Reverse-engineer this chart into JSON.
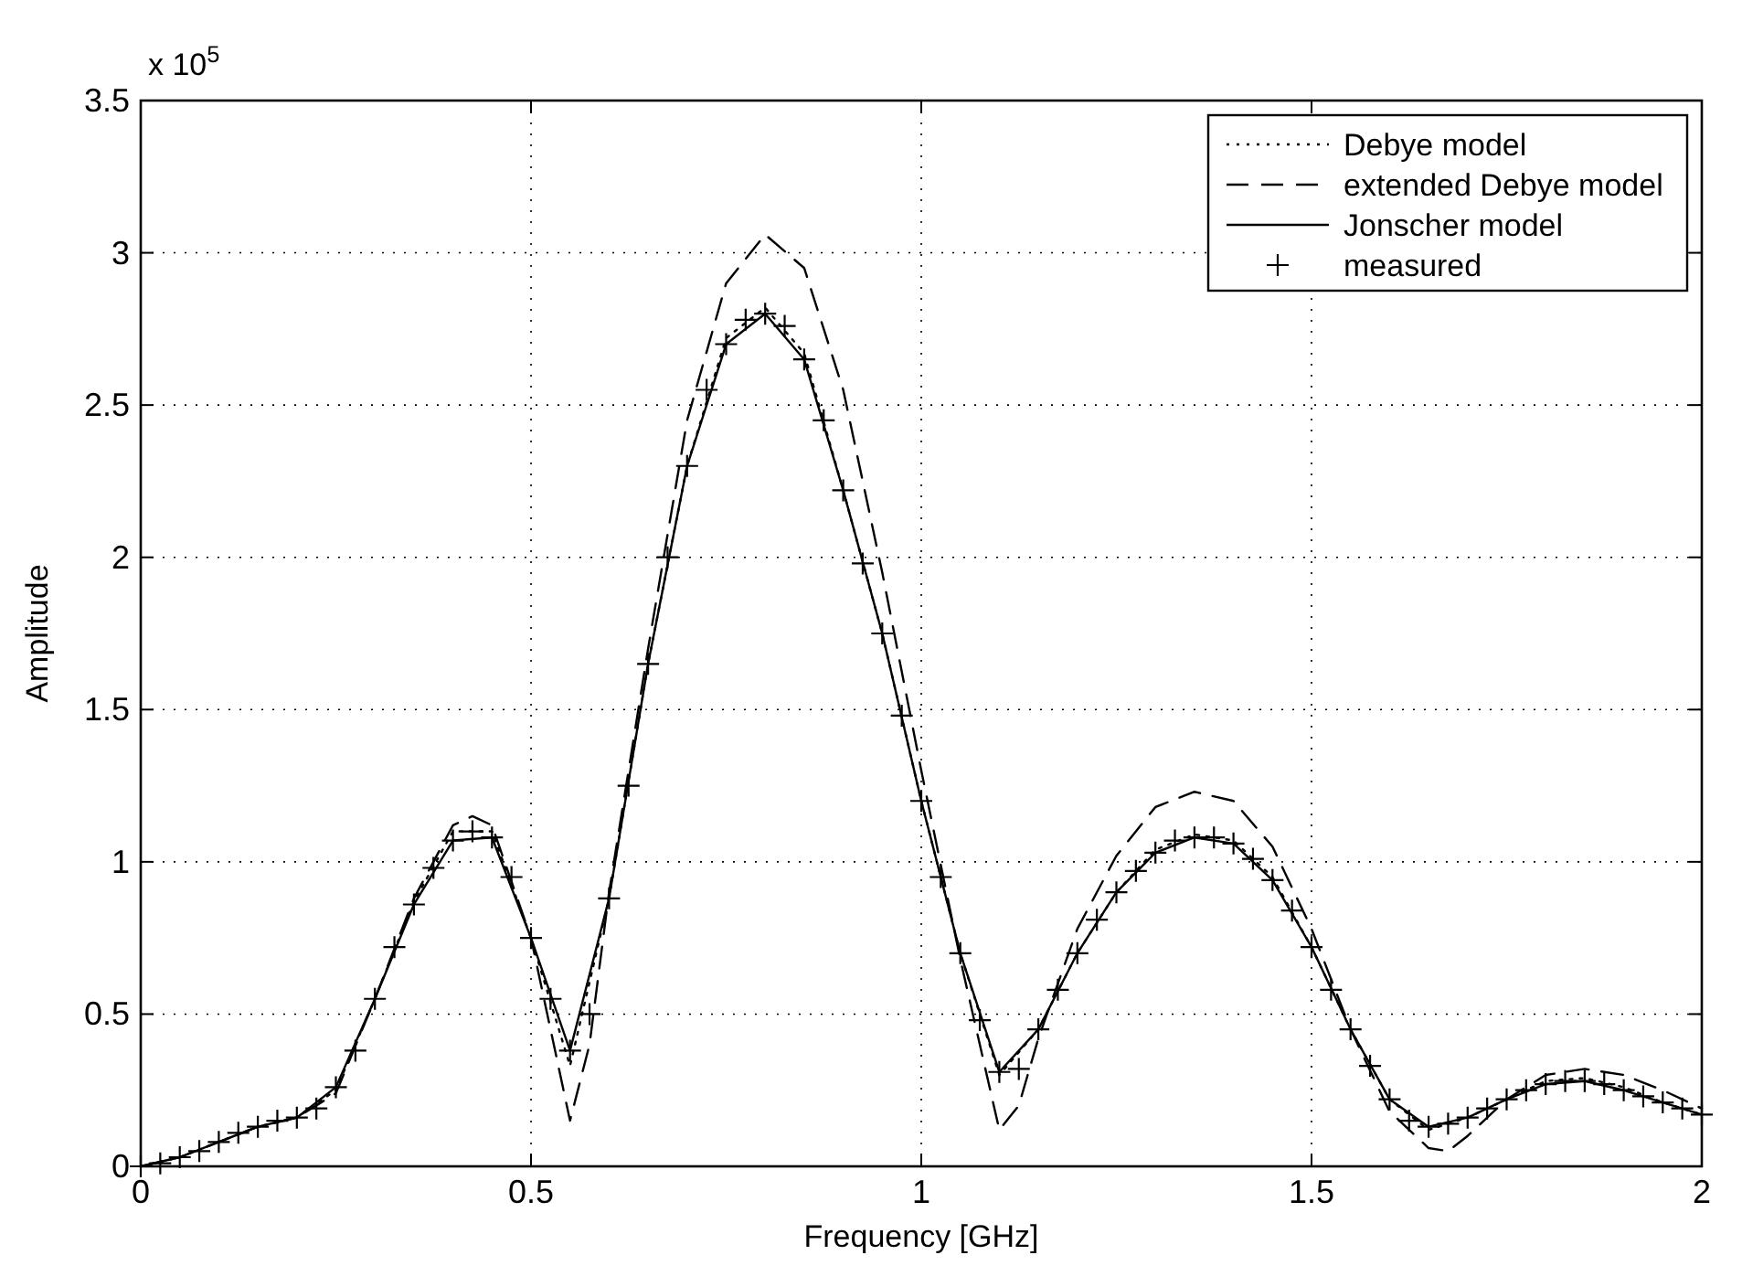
{
  "chart_data": {
    "type": "line",
    "xlabel": "Frequency [GHz]",
    "ylabel": "Amplitude",
    "annotations": [
      "x 10$^{5}$"
    ],
    "xlim": [
      0,
      2
    ],
    "ylim": [
      0,
      3.5
    ],
    "xticks": [
      0,
      0.5,
      1,
      1.5,
      2
    ],
    "yticks": [
      0,
      0.5,
      1,
      1.5,
      2,
      2.5,
      3,
      3.5
    ],
    "grid": true,
    "legend": "top right",
    "series": [
      {
        "name": "Debye model",
        "line_style": "dotted",
        "color": "#000000",
        "x": [
          0,
          0.05,
          0.1,
          0.15,
          0.2,
          0.25,
          0.3,
          0.35,
          0.4,
          0.45,
          0.5,
          0.55,
          0.6,
          0.65,
          0.7,
          0.75,
          0.8,
          0.85,
          0.9,
          0.95,
          1,
          1.05,
          1.1,
          1.15,
          1.2,
          1.25,
          1.3,
          1.35,
          1.4,
          1.45,
          1.5,
          1.55,
          1.6,
          1.65,
          1.7,
          1.75,
          1.8,
          1.85,
          1.9,
          1.95,
          2
        ],
        "values": [
          0,
          0.03,
          0.08,
          0.13,
          0.16,
          0.25,
          0.55,
          0.87,
          1.1,
          1.1,
          0.75,
          0.33,
          0.88,
          1.65,
          2.3,
          2.72,
          2.82,
          2.67,
          2.22,
          1.75,
          1.2,
          0.7,
          0.3,
          0.45,
          0.7,
          0.9,
          1.04,
          1.09,
          1.07,
          0.95,
          0.72,
          0.45,
          0.22,
          0.12,
          0.16,
          0.22,
          0.28,
          0.29,
          0.26,
          0.21,
          0.17
        ]
      },
      {
        "name": "extended Debye model",
        "line_style": "dashed",
        "color": "#000000",
        "x": [
          0,
          0.05,
          0.1,
          0.15,
          0.2,
          0.25,
          0.3,
          0.35,
          0.4,
          0.425,
          0.45,
          0.5,
          0.525,
          0.55,
          0.575,
          0.6,
          0.65,
          0.7,
          0.75,
          0.8,
          0.85,
          0.9,
          0.95,
          1,
          1.05,
          1.1,
          1.125,
          1.15,
          1.2,
          1.25,
          1.3,
          1.35,
          1.4,
          1.45,
          1.5,
          1.55,
          1.6,
          1.65,
          1.675,
          1.7,
          1.75,
          1.8,
          1.85,
          1.9,
          1.95,
          2
        ],
        "values": [
          0,
          0.03,
          0.08,
          0.13,
          0.16,
          0.24,
          0.55,
          0.88,
          1.12,
          1.15,
          1.12,
          0.75,
          0.45,
          0.15,
          0.4,
          0.9,
          1.7,
          2.45,
          2.9,
          3.06,
          2.95,
          2.55,
          1.95,
          1.3,
          0.68,
          0.12,
          0.2,
          0.42,
          0.78,
          1.02,
          1.18,
          1.23,
          1.2,
          1.05,
          0.78,
          0.45,
          0.18,
          0.06,
          0.05,
          0.1,
          0.22,
          0.3,
          0.32,
          0.3,
          0.25,
          0.19
        ]
      },
      {
        "name": "Jonscher model",
        "line_style": "solid",
        "color": "#000000",
        "x": [
          0,
          0.05,
          0.1,
          0.15,
          0.2,
          0.25,
          0.3,
          0.35,
          0.4,
          0.45,
          0.5,
          0.55,
          0.6,
          0.65,
          0.7,
          0.75,
          0.8,
          0.85,
          0.9,
          0.95,
          1,
          1.05,
          1.1,
          1.15,
          1.2,
          1.25,
          1.3,
          1.35,
          1.4,
          1.45,
          1.5,
          1.55,
          1.6,
          1.65,
          1.7,
          1.75,
          1.8,
          1.85,
          1.9,
          1.95,
          2
        ],
        "values": [
          0,
          0.03,
          0.08,
          0.13,
          0.16,
          0.26,
          0.55,
          0.86,
          1.07,
          1.08,
          0.75,
          0.38,
          0.88,
          1.65,
          2.3,
          2.7,
          2.8,
          2.65,
          2.22,
          1.75,
          1.2,
          0.7,
          0.31,
          0.45,
          0.7,
          0.9,
          1.03,
          1.08,
          1.06,
          0.94,
          0.72,
          0.45,
          0.22,
          0.13,
          0.16,
          0.22,
          0.27,
          0.28,
          0.25,
          0.21,
          0.17
        ]
      },
      {
        "name": "measured",
        "type": "scatter",
        "marker": "cross",
        "color": "#000000",
        "x": [
          0,
          0.025,
          0.05,
          0.075,
          0.1,
          0.125,
          0.15,
          0.175,
          0.2,
          0.225,
          0.25,
          0.275,
          0.3,
          0.325,
          0.35,
          0.375,
          0.4,
          0.425,
          0.45,
          0.475,
          0.5,
          0.525,
          0.55,
          0.575,
          0.6,
          0.625,
          0.65,
          0.675,
          0.7,
          0.725,
          0.75,
          0.775,
          0.8,
          0.825,
          0.85,
          0.875,
          0.9,
          0.925,
          0.95,
          0.975,
          1,
          1.025,
          1.05,
          1.075,
          1.1,
          1.125,
          1.15,
          1.175,
          1.2,
          1.225,
          1.25,
          1.275,
          1.3,
          1.325,
          1.35,
          1.375,
          1.4,
          1.425,
          1.45,
          1.475,
          1.5,
          1.525,
          1.55,
          1.575,
          1.6,
          1.625,
          1.65,
          1.675,
          1.7,
          1.725,
          1.75,
          1.775,
          1.8,
          1.825,
          1.85,
          1.875,
          1.9,
          1.925,
          1.95,
          1.975,
          2
        ],
        "values": [
          0,
          0.01,
          0.03,
          0.05,
          0.08,
          0.11,
          0.13,
          0.15,
          0.16,
          0.19,
          0.26,
          0.38,
          0.55,
          0.72,
          0.86,
          0.98,
          1.07,
          1.1,
          1.08,
          0.95,
          0.75,
          0.55,
          0.38,
          0.5,
          0.88,
          1.25,
          1.65,
          2,
          2.3,
          2.55,
          2.7,
          2.78,
          2.8,
          2.76,
          2.65,
          2.45,
          2.22,
          1.98,
          1.75,
          1.48,
          1.2,
          0.95,
          0.7,
          0.48,
          0.31,
          0.32,
          0.45,
          0.58,
          0.7,
          0.81,
          0.9,
          0.97,
          1.03,
          1.07,
          1.08,
          1.08,
          1.06,
          1.01,
          0.94,
          0.84,
          0.72,
          0.58,
          0.45,
          0.33,
          0.22,
          0.15,
          0.13,
          0.14,
          0.16,
          0.19,
          0.22,
          0.25,
          0.27,
          0.28,
          0.28,
          0.27,
          0.25,
          0.23,
          0.21,
          0.19,
          0.17
        ]
      }
    ]
  }
}
